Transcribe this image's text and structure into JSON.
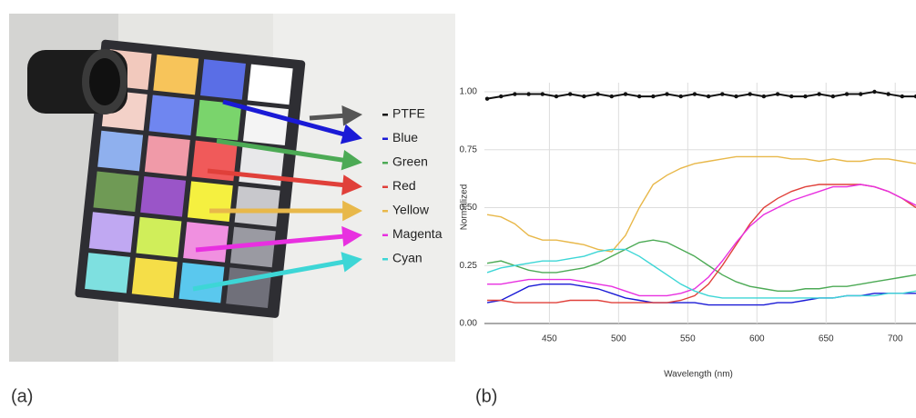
{
  "panels": {
    "a": "(a)",
    "b": "(b)"
  },
  "chart_data": {
    "type": "line",
    "xlabel": "Wavelength (nm)",
    "ylabel": "Normalized",
    "x": [
      405,
      415,
      425,
      435,
      445,
      455,
      465,
      475,
      485,
      495,
      505,
      515,
      525,
      535,
      545,
      555,
      565,
      575,
      585,
      595,
      605,
      615,
      625,
      635,
      645,
      655,
      665,
      675,
      685,
      695,
      705,
      715
    ],
    "xlim": [
      403,
      715
    ],
    "ylim": [
      0,
      1
    ],
    "xticks": [
      450,
      500,
      550,
      600,
      650,
      700
    ],
    "yticks": [
      {
        "value": 0,
        "label": "0.00"
      },
      {
        "value": 0.25,
        "label": "0.25"
      },
      {
        "value": 0.5,
        "label": "0.50"
      },
      {
        "value": 0.75,
        "label": "0.75"
      },
      {
        "value": 1,
        "label": "1.00"
      }
    ],
    "grid": true,
    "series": [
      {
        "name": "PTFE",
        "color": "#111111",
        "values": [
          0.97,
          0.98,
          0.99,
          0.99,
          0.99,
          0.98,
          0.99,
          0.98,
          0.99,
          0.98,
          0.99,
          0.98,
          0.98,
          0.99,
          0.98,
          0.99,
          0.98,
          0.99,
          0.98,
          0.99,
          0.98,
          0.99,
          0.98,
          0.98,
          0.99,
          0.98,
          0.99,
          0.99,
          1.0,
          0.99,
          0.98,
          0.98
        ]
      },
      {
        "name": "Blue",
        "color": "#1a1ad6",
        "values": [
          0.09,
          0.1,
          0.13,
          0.16,
          0.17,
          0.17,
          0.17,
          0.16,
          0.15,
          0.13,
          0.11,
          0.1,
          0.09,
          0.09,
          0.09,
          0.09,
          0.08,
          0.08,
          0.08,
          0.08,
          0.08,
          0.09,
          0.09,
          0.1,
          0.11,
          0.11,
          0.12,
          0.12,
          0.13,
          0.13,
          0.13,
          0.13
        ]
      },
      {
        "name": "Green",
        "color": "#4caa55",
        "values": [
          0.26,
          0.27,
          0.25,
          0.23,
          0.22,
          0.22,
          0.23,
          0.24,
          0.26,
          0.29,
          0.32,
          0.35,
          0.36,
          0.35,
          0.32,
          0.29,
          0.25,
          0.21,
          0.18,
          0.16,
          0.15,
          0.14,
          0.14,
          0.15,
          0.15,
          0.16,
          0.16,
          0.17,
          0.18,
          0.19,
          0.2,
          0.21
        ]
      },
      {
        "name": "Red",
        "color": "#e0403a",
        "values": [
          0.1,
          0.1,
          0.09,
          0.09,
          0.09,
          0.09,
          0.1,
          0.1,
          0.1,
          0.09,
          0.09,
          0.09,
          0.09,
          0.09,
          0.1,
          0.12,
          0.17,
          0.25,
          0.34,
          0.43,
          0.5,
          0.54,
          0.57,
          0.59,
          0.6,
          0.6,
          0.6,
          0.6,
          0.59,
          0.57,
          0.54,
          0.5
        ]
      },
      {
        "name": "Yellow",
        "color": "#e8b84a",
        "values": [
          0.47,
          0.46,
          0.43,
          0.38,
          0.36,
          0.36,
          0.35,
          0.34,
          0.32,
          0.31,
          0.38,
          0.5,
          0.6,
          0.64,
          0.67,
          0.69,
          0.7,
          0.71,
          0.72,
          0.72,
          0.72,
          0.72,
          0.71,
          0.71,
          0.7,
          0.71,
          0.7,
          0.7,
          0.71,
          0.71,
          0.7,
          0.69
        ]
      },
      {
        "name": "Magenta",
        "color": "#e830e0",
        "values": [
          0.17,
          0.17,
          0.18,
          0.19,
          0.19,
          0.19,
          0.19,
          0.18,
          0.17,
          0.16,
          0.14,
          0.12,
          0.12,
          0.12,
          0.13,
          0.15,
          0.2,
          0.27,
          0.35,
          0.42,
          0.47,
          0.5,
          0.53,
          0.55,
          0.57,
          0.59,
          0.59,
          0.6,
          0.59,
          0.57,
          0.54,
          0.51
        ]
      },
      {
        "name": "Cyan",
        "color": "#3dd6d6",
        "values": [
          0.22,
          0.24,
          0.25,
          0.26,
          0.27,
          0.27,
          0.28,
          0.29,
          0.31,
          0.32,
          0.32,
          0.29,
          0.25,
          0.21,
          0.17,
          0.14,
          0.12,
          0.11,
          0.11,
          0.11,
          0.11,
          0.11,
          0.11,
          0.11,
          0.11,
          0.11,
          0.12,
          0.12,
          0.12,
          0.13,
          0.13,
          0.14
        ]
      }
    ]
  }
}
